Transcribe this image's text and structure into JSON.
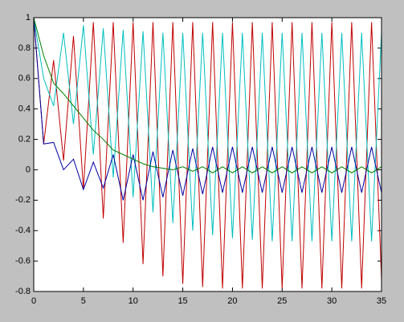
{
  "chart_data": {
    "type": "line",
    "x": [
      0,
      1,
      2,
      3,
      4,
      5,
      6,
      7,
      8,
      9,
      10,
      11,
      12,
      13,
      14,
      15,
      16,
      17,
      18,
      19,
      20,
      21,
      22,
      23,
      24,
      25,
      26,
      27,
      28,
      29,
      30,
      31,
      32,
      33,
      34,
      35
    ],
    "series": [
      {
        "color": "#c00000",
        "values": [
          1,
          0.17,
          0.72,
          0.06,
          0.88,
          -0.13,
          0.97,
          -0.32,
          0.97,
          -0.48,
          0.97,
          -0.62,
          0.97,
          -0.7,
          0.97,
          -0.75,
          0.97,
          -0.77,
          0.97,
          -0.78,
          0.97,
          -0.78,
          0.97,
          -0.78,
          0.97,
          -0.78,
          0.97,
          -0.78,
          0.97,
          -0.78,
          0.97,
          -0.78,
          0.97,
          -0.78,
          0.97,
          -0.72
        ]
      },
      {
        "color": "#00bfbf",
        "values": [
          1,
          0.6,
          0.42,
          0.9,
          0.3,
          0.95,
          0.1,
          0.93,
          -0.05,
          0.92,
          -0.18,
          0.91,
          -0.28,
          0.9,
          -0.35,
          0.9,
          -0.4,
          0.9,
          -0.43,
          0.9,
          -0.45,
          0.9,
          -0.46,
          0.9,
          -0.47,
          0.9,
          -0.47,
          0.9,
          -0.47,
          0.9,
          -0.47,
          0.9,
          -0.47,
          0.9,
          -0.47,
          0.9
        ]
      },
      {
        "color": "#0000a0",
        "values": [
          1,
          0.17,
          0.18,
          0,
          0.07,
          -0.13,
          0.05,
          -0.12,
          0.1,
          -0.2,
          0.1,
          -0.2,
          0.12,
          -0.18,
          0.13,
          -0.17,
          0.14,
          -0.16,
          0.15,
          -0.15,
          0.15,
          -0.15,
          0.15,
          -0.15,
          0.15,
          -0.15,
          0.15,
          -0.15,
          0.15,
          -0.15,
          0.15,
          -0.15,
          0.15,
          -0.15,
          0.15,
          -0.15
        ]
      },
      {
        "color": "#008000",
        "values": [
          1,
          0.75,
          0.57,
          0.5,
          0.42,
          0.34,
          0.26,
          0.2,
          0.13,
          0.1,
          0.07,
          0.04,
          0.02,
          0.01,
          0,
          0.02,
          -0.01,
          0.02,
          -0.02,
          0.02,
          -0.02,
          0.02,
          -0.02,
          0.02,
          -0.02,
          0.02,
          -0.02,
          0.02,
          -0.02,
          0.02,
          -0.02,
          0.02,
          -0.02,
          0.02,
          -0.02,
          0.02
        ]
      }
    ],
    "xlim": [
      0,
      35
    ],
    "xticks": [
      0,
      5,
      10,
      15,
      20,
      25,
      30,
      35
    ],
    "ylim": [
      -0.8,
      1
    ],
    "yticks": [
      -0.8,
      -0.6,
      -0.4,
      -0.2,
      0,
      0.2,
      0.4,
      0.6,
      0.8,
      1
    ]
  }
}
